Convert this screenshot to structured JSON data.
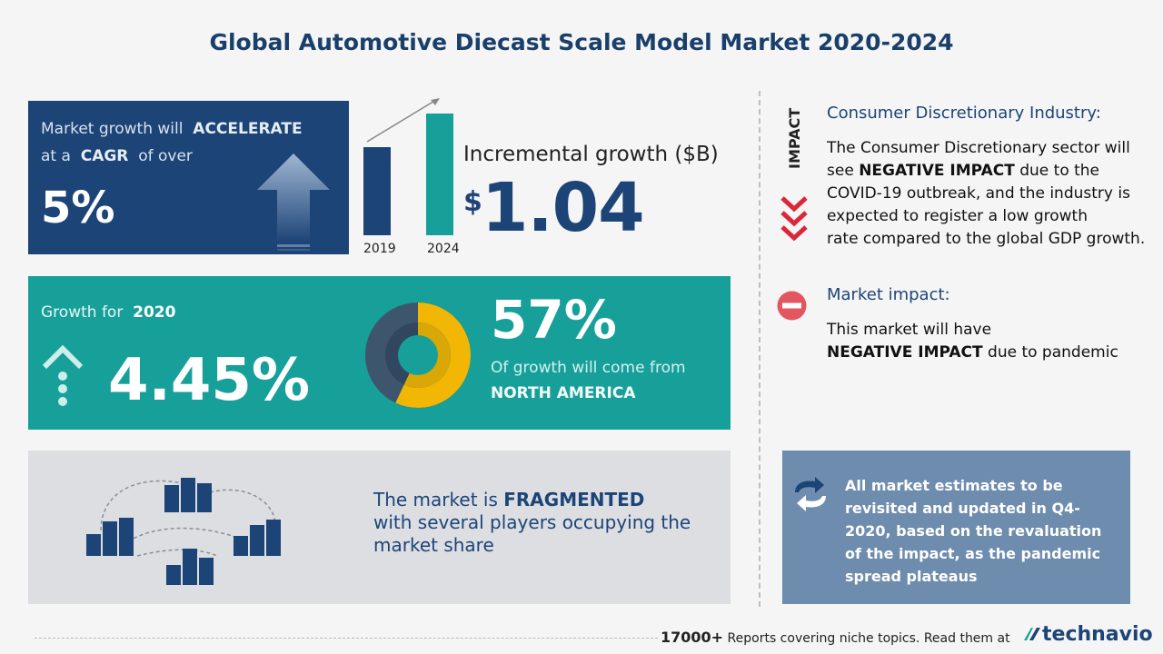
{
  "title": "Global Automotive Diecast Scale Model Market 2020-2024",
  "cagr": {
    "line1_prefix": "Market growth will",
    "line1_emph": "ACCELERATE",
    "line2_prefix": "at a",
    "line2_emph": "CAGR",
    "line2_suffix": "of over",
    "value": "5%"
  },
  "incremental": {
    "year_start": "2019",
    "year_end": "2024",
    "label": "Incremental growth ($B)",
    "currency": "$",
    "value": "1.04"
  },
  "growth2020": {
    "label_prefix": "Growth for",
    "label_year": "2020",
    "value": "4.45%",
    "share_value": "57%",
    "share_text": "Of growth will come from",
    "region": "NORTH AMERICA",
    "donut_fraction": 0.57
  },
  "fragmented": {
    "prefix": "The market is",
    "emph": "FRAGMENTED",
    "line2": "with several players occupying the",
    "line3": "market share"
  },
  "impact": {
    "vertical_label": "IMPACT",
    "industry_title": "Consumer Discretionary Industry:",
    "industry_line1": "The Consumer Discretionary sector will",
    "industry_line2_prefix": "see",
    "industry_line2_emph": "NEGATIVE IMPACT",
    "industry_line2_suffix": "due to the",
    "industry_line3": "COVID-19 outbreak, and the industry is",
    "industry_line4": "expected to register a low growth",
    "industry_line5": "rate compared to the global GDP growth.",
    "market_title": "Market impact:",
    "market_line1": "This market will have",
    "market_line2_emph": "NEGATIVE IMPACT",
    "market_line2_suffix": "due to pandemic"
  },
  "note": {
    "text": "All market estimates to be revisited and updated in Q4-2020, based on the revaluation of the impact, as the pandemic spread plateaus",
    "line1": "All market estimates to be",
    "line2": "revisited and updated in Q4-",
    "line3": "2020, based on the revaluation",
    "line4": "of the impact, as the pandemic",
    "line5": "spread plateaus"
  },
  "footer": {
    "count": "17000+",
    "text": "Reports covering niche topics. Read them at",
    "logo": "technavio"
  },
  "colors": {
    "navy": "#1d4477",
    "teal": "#17a09a",
    "gold": "#f2b705",
    "red": "#d9283a",
    "slate": "#6e8cad"
  }
}
